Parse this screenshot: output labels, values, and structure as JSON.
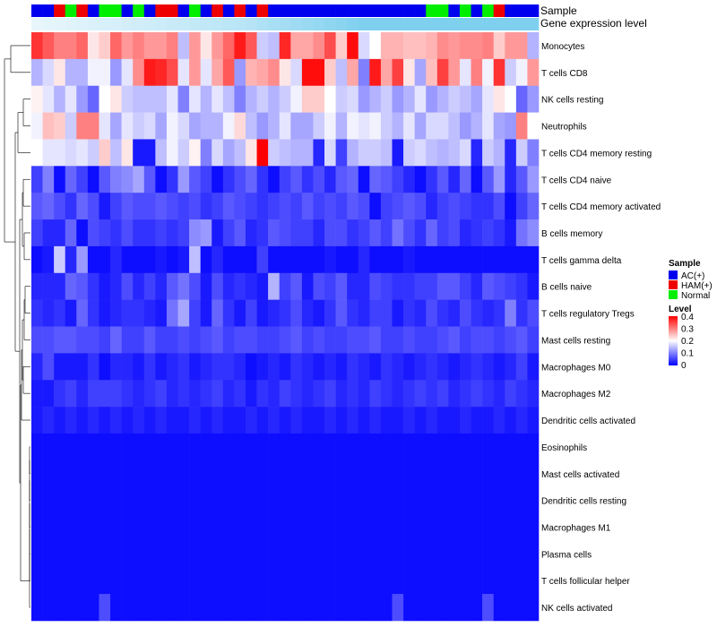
{
  "chart_data": {
    "type": "heatmap",
    "annotation_tracks": [
      "Sample",
      "Gene expression level"
    ],
    "sample_groups": [
      "AC(+)",
      "HAM(+)",
      "Normal"
    ],
    "sample_colors": {
      "AC(+)": "#0000ee",
      "HAM(+)": "#ee0000",
      "Normal": "#00ee00"
    },
    "samples": [
      "AC(+)",
      "AC(+)",
      "HAM(+)",
      "Normal",
      "HAM(+)",
      "AC(+)",
      "Normal",
      "Normal",
      "AC(+)",
      "Normal",
      "AC(+)",
      "HAM(+)",
      "HAM(+)",
      "AC(+)",
      "Normal",
      "AC(+)",
      "HAM(+)",
      "AC(+)",
      "HAM(+)",
      "AC(+)",
      "HAM(+)",
      "AC(+)",
      "AC(+)",
      "AC(+)",
      "AC(+)",
      "AC(+)",
      "AC(+)",
      "AC(+)",
      "AC(+)",
      "AC(+)",
      "AC(+)",
      "AC(+)",
      "AC(+)",
      "AC(+)",
      "AC(+)",
      "Normal",
      "Normal",
      "AC(+)",
      "Normal",
      "AC(+)",
      "Normal",
      "HAM(+)",
      "AC(+)",
      "AC(+)",
      "AC(+)"
    ],
    "gene_expression_gradient": [
      "#e8f6fc",
      "#7fd0ef"
    ],
    "rows": [
      "Monocytes",
      "T cells CD8",
      "NK cells resting",
      "Neutrophils",
      "T cells CD4 memory resting",
      "T cells CD4 naive",
      "T cells CD4 memory activated",
      "B cells memory",
      "T cells gamma delta",
      "B cells naive",
      "T cells regulatory  Tregs",
      "Mast cells resting",
      "Macrophages M0",
      "Macrophages M2",
      "Dendritic cells activated",
      "Eosinophils",
      "Mast cells activated",
      "Dendritic cells resting",
      "Macrophages M1",
      "Plasma cells",
      "T cells follicular helper",
      "NK cells activated"
    ],
    "color_scale": {
      "title": "Level",
      "range": [
        0,
        0.4
      ],
      "ticks": [
        "0.4",
        "0.3",
        "0.2",
        "0.1",
        "0"
      ],
      "colors": [
        "#0000ff",
        "#ffffff",
        "#ff0000"
      ]
    },
    "legend_position": "right",
    "values": [
      [
        0.36,
        0.33,
        0.3,
        0.3,
        0.32,
        0.22,
        0.24,
        0.32,
        0.28,
        0.3,
        0.28,
        0.28,
        0.3,
        0.15,
        0.28,
        0.22,
        0.28,
        0.32,
        0.38,
        0.33,
        0.16,
        0.15,
        0.37,
        0.27,
        0.27,
        0.29,
        0.34,
        0.24,
        0.39,
        0.17,
        0.2,
        0.26,
        0.26,
        0.25,
        0.25,
        0.26,
        0.29,
        0.28,
        0.29,
        0.29,
        0.3,
        0.24,
        0.28,
        0.28,
        0.14
      ],
      [
        0.14,
        0.17,
        0.22,
        0.14,
        0.14,
        0.19,
        0.19,
        0.12,
        0.18,
        0.29,
        0.38,
        0.37,
        0.34,
        0.18,
        0.28,
        0.18,
        0.27,
        0.33,
        0.12,
        0.26,
        0.27,
        0.29,
        0.22,
        0.17,
        0.39,
        0.39,
        0.24,
        0.15,
        0.27,
        0.1,
        0.38,
        0.27,
        0.35,
        0.22,
        0.13,
        0.25,
        0.35,
        0.28,
        0.18,
        0.3,
        0.19,
        0.36,
        0.16,
        0.19,
        0.28
      ],
      [
        0.21,
        0.18,
        0.14,
        0.18,
        0.12,
        0.08,
        0.2,
        0.22,
        0.16,
        0.15,
        0.15,
        0.15,
        0.18,
        0.1,
        0.18,
        0.14,
        0.18,
        0.15,
        0.1,
        0.14,
        0.16,
        0.14,
        0.16,
        0.19,
        0.24,
        0.24,
        0.2,
        0.16,
        0.17,
        0.12,
        0.14,
        0.16,
        0.12,
        0.14,
        0.18,
        0.12,
        0.14,
        0.16,
        0.15,
        0.13,
        0.18,
        0.22,
        0.2,
        0.08,
        0.12
      ],
      [
        0.19,
        0.25,
        0.24,
        0.16,
        0.3,
        0.3,
        0.18,
        0.13,
        0.18,
        0.16,
        0.17,
        0.13,
        0.19,
        0.17,
        0.13,
        0.14,
        0.14,
        0.19,
        0.23,
        0.15,
        0.12,
        0.14,
        0.18,
        0.13,
        0.13,
        0.16,
        0.19,
        0.14,
        0.19,
        0.18,
        0.19,
        0.16,
        0.14,
        0.18,
        0.13,
        0.17,
        0.17,
        0.15,
        0.12,
        0.14,
        0.18,
        0.13,
        0.12,
        0.3,
        0.2
      ],
      [
        0.2,
        0.18,
        0.18,
        0.17,
        0.18,
        0.16,
        0.24,
        0.15,
        0.22,
        0.02,
        0.02,
        0.15,
        0.19,
        0.16,
        0.21,
        0.1,
        0.17,
        0.13,
        0.15,
        0.22,
        0.4,
        0.16,
        0.15,
        0.14,
        0.14,
        0.03,
        0.17,
        0.05,
        0.14,
        0.16,
        0.16,
        0.15,
        0.02,
        0.16,
        0.17,
        0.15,
        0.14,
        0.15,
        0.17,
        0.03,
        0.16,
        0.14,
        0.03,
        0.16,
        0.1
      ],
      [
        0.05,
        0.1,
        0.01,
        0.08,
        0.05,
        0.01,
        0.07,
        0.1,
        0.11,
        0.13,
        0.07,
        0.01,
        0.04,
        0.12,
        0.07,
        0.05,
        0.01,
        0.04,
        0.06,
        0.08,
        0.04,
        0.01,
        0.05,
        0.07,
        0.04,
        0.06,
        0.03,
        0.07,
        0.08,
        0.01,
        0.08,
        0.07,
        0.05,
        0.03,
        0.01,
        0.04,
        0.07,
        0.03,
        0.08,
        0.01,
        0.07,
        0.12,
        0.03,
        0.07,
        0.12
      ],
      [
        0.07,
        0.08,
        0.06,
        0.04,
        0.08,
        0.06,
        0.02,
        0.05,
        0.07,
        0.06,
        0.06,
        0.07,
        0.06,
        0.05,
        0.06,
        0.04,
        0.05,
        0.07,
        0.06,
        0.05,
        0.04,
        0.05,
        0.06,
        0.05,
        0.07,
        0.05,
        0.06,
        0.05,
        0.07,
        0.06,
        0.01,
        0.05,
        0.06,
        0.07,
        0.06,
        0.03,
        0.05,
        0.06,
        0.05,
        0.04,
        0.04,
        0.06,
        0.01,
        0.05,
        0.08
      ],
      [
        0.05,
        0.03,
        0.03,
        0.08,
        0.01,
        0.06,
        0.05,
        0.04,
        0.06,
        0.04,
        0.04,
        0.05,
        0.04,
        0.05,
        0.11,
        0.12,
        0.02,
        0.05,
        0.07,
        0.03,
        0.04,
        0.07,
        0.06,
        0.05,
        0.05,
        0.03,
        0.06,
        0.06,
        0.04,
        0.05,
        0.07,
        0.05,
        0.09,
        0.06,
        0.04,
        0.08,
        0.05,
        0.06,
        0.03,
        0.04,
        0.05,
        0.04,
        0.02,
        0.09,
        0.11
      ],
      [
        0.01,
        0.02,
        0.16,
        0.03,
        0.12,
        0.01,
        0.01,
        0.03,
        0.01,
        0.01,
        0.01,
        0.02,
        0.01,
        0.02,
        0.15,
        0.01,
        0.03,
        0.01,
        0.01,
        0.01,
        0.05,
        0.01,
        0.01,
        0.01,
        0.01,
        0.01,
        0.02,
        0.01,
        0.01,
        0.03,
        0.01,
        0.01,
        0.01,
        0.02,
        0.01,
        0.01,
        0.01,
        0.01,
        0.01,
        0.01,
        0.01,
        0.01,
        0.01,
        0.01,
        0.01
      ],
      [
        0.03,
        0.03,
        0.03,
        0.08,
        0.07,
        0.04,
        0.02,
        0.03,
        0.06,
        0.03,
        0.05,
        0.03,
        0.07,
        0.09,
        0.06,
        0.02,
        0.06,
        0.03,
        0.04,
        0.03,
        0.02,
        0.14,
        0.05,
        0.07,
        0.02,
        0.06,
        0.05,
        0.07,
        0.03,
        0.03,
        0.06,
        0.05,
        0.04,
        0.04,
        0.05,
        0.05,
        0.07,
        0.07,
        0.05,
        0.03,
        0.07,
        0.06,
        0.05,
        0.04,
        0.02
      ],
      [
        0.04,
        0.03,
        0.04,
        0.02,
        0.08,
        0.04,
        0.02,
        0.03,
        0.04,
        0.04,
        0.03,
        0.02,
        0.09,
        0.13,
        0.05,
        0.02,
        0.08,
        0.04,
        0.02,
        0.05,
        0.02,
        0.03,
        0.04,
        0.06,
        0.03,
        0.02,
        0.04,
        0.07,
        0.04,
        0.03,
        0.05,
        0.05,
        0.02,
        0.04,
        0.03,
        0.06,
        0.04,
        0.03,
        0.06,
        0.04,
        0.03,
        0.04,
        0.1,
        0.04,
        0.06
      ],
      [
        0.06,
        0.06,
        0.07,
        0.07,
        0.06,
        0.06,
        0.05,
        0.08,
        0.05,
        0.05,
        0.07,
        0.05,
        0.05,
        0.06,
        0.05,
        0.06,
        0.07,
        0.05,
        0.06,
        0.06,
        0.05,
        0.05,
        0.06,
        0.07,
        0.05,
        0.06,
        0.05,
        0.05,
        0.06,
        0.06,
        0.07,
        0.05,
        0.05,
        0.06,
        0.05,
        0.05,
        0.06,
        0.07,
        0.05,
        0.06,
        0.06,
        0.05,
        0.06,
        0.07,
        0.05
      ],
      [
        0.03,
        0.06,
        0.02,
        0.02,
        0.02,
        0.04,
        0.01,
        0.03,
        0.03,
        0.02,
        0.04,
        0.02,
        0.03,
        0.04,
        0.02,
        0.03,
        0.04,
        0.04,
        0.03,
        0.01,
        0.02,
        0.03,
        0.02,
        0.04,
        0.03,
        0.02,
        0.03,
        0.02,
        0.04,
        0.03,
        0.02,
        0.04,
        0.03,
        0.02,
        0.03,
        0.04,
        0.03,
        0.02,
        0.03,
        0.04,
        0.03,
        0.02,
        0.03,
        0.05,
        0.02
      ],
      [
        0.02,
        0.02,
        0.04,
        0.05,
        0.03,
        0.05,
        0.05,
        0.05,
        0.04,
        0.03,
        0.04,
        0.05,
        0.03,
        0.04,
        0.03,
        0.04,
        0.05,
        0.03,
        0.04,
        0.02,
        0.04,
        0.03,
        0.05,
        0.04,
        0.03,
        0.04,
        0.05,
        0.03,
        0.04,
        0.03,
        0.05,
        0.04,
        0.03,
        0.04,
        0.05,
        0.04,
        0.05,
        0.03,
        0.04,
        0.05,
        0.04,
        0.03,
        0.05,
        0.04,
        0.03
      ],
      [
        0.02,
        0.03,
        0.02,
        0.03,
        0.02,
        0.03,
        0.02,
        0.03,
        0.02,
        0.03,
        0.02,
        0.03,
        0.02,
        0.02,
        0.03,
        0.02,
        0.03,
        0.02,
        0.02,
        0.03,
        0.02,
        0.03,
        0.02,
        0.03,
        0.02,
        0.02,
        0.03,
        0.02,
        0.03,
        0.02,
        0.03,
        0.02,
        0.02,
        0.03,
        0.02,
        0.03,
        0.02,
        0.02,
        0.03,
        0.02,
        0.02,
        0.03,
        0.02,
        0.03,
        0.02
      ],
      [
        0.01,
        0.01,
        0.01,
        0.01,
        0.01,
        0.01,
        0.01,
        0.01,
        0.01,
        0.01,
        0.01,
        0.01,
        0.01,
        0.01,
        0.01,
        0.01,
        0.01,
        0.01,
        0.01,
        0.01,
        0.01,
        0.01,
        0.01,
        0.01,
        0.01,
        0.01,
        0.01,
        0.01,
        0.01,
        0.01,
        0.01,
        0.01,
        0.01,
        0.01,
        0.01,
        0.01,
        0.01,
        0.01,
        0.01,
        0.01,
        0.01,
        0.01,
        0.01,
        0.01,
        0.01
      ],
      [
        0.01,
        0.01,
        0.01,
        0.01,
        0.01,
        0.01,
        0.01,
        0.01,
        0.01,
        0.01,
        0.01,
        0.01,
        0.01,
        0.01,
        0.01,
        0.01,
        0.01,
        0.01,
        0.01,
        0.01,
        0.01,
        0.01,
        0.01,
        0.01,
        0.01,
        0.01,
        0.01,
        0.01,
        0.01,
        0.01,
        0.01,
        0.01,
        0.01,
        0.01,
        0.01,
        0.01,
        0.01,
        0.01,
        0.01,
        0.01,
        0.01,
        0.01,
        0.01,
        0.01,
        0.01
      ],
      [
        0.01,
        0.01,
        0.01,
        0.01,
        0.01,
        0.01,
        0.01,
        0.01,
        0.01,
        0.01,
        0.01,
        0.01,
        0.01,
        0.01,
        0.01,
        0.01,
        0.01,
        0.01,
        0.01,
        0.01,
        0.01,
        0.01,
        0.01,
        0.01,
        0.01,
        0.01,
        0.01,
        0.01,
        0.01,
        0.01,
        0.01,
        0.01,
        0.01,
        0.01,
        0.01,
        0.01,
        0.01,
        0.01,
        0.01,
        0.01,
        0.01,
        0.01,
        0.01,
        0.01,
        0.01
      ],
      [
        0.01,
        0.01,
        0.01,
        0.01,
        0.01,
        0.01,
        0.01,
        0.01,
        0.01,
        0.01,
        0.01,
        0.01,
        0.01,
        0.01,
        0.01,
        0.01,
        0.01,
        0.01,
        0.01,
        0.01,
        0.01,
        0.01,
        0.01,
        0.01,
        0.01,
        0.01,
        0.01,
        0.01,
        0.01,
        0.01,
        0.01,
        0.01,
        0.01,
        0.01,
        0.01,
        0.01,
        0.01,
        0.01,
        0.01,
        0.01,
        0.01,
        0.01,
        0.01,
        0.01,
        0.01
      ],
      [
        0.01,
        0.01,
        0.01,
        0.01,
        0.01,
        0.01,
        0.01,
        0.01,
        0.01,
        0.01,
        0.01,
        0.01,
        0.01,
        0.01,
        0.01,
        0.01,
        0.01,
        0.01,
        0.01,
        0.01,
        0.01,
        0.01,
        0.01,
        0.01,
        0.01,
        0.01,
        0.01,
        0.01,
        0.01,
        0.01,
        0.01,
        0.01,
        0.01,
        0.01,
        0.01,
        0.01,
        0.01,
        0.01,
        0.01,
        0.01,
        0.01,
        0.01,
        0.01,
        0.01,
        0.01
      ],
      [
        0.01,
        0.01,
        0.01,
        0.01,
        0.01,
        0.01,
        0.01,
        0.01,
        0.01,
        0.01,
        0.01,
        0.01,
        0.01,
        0.01,
        0.01,
        0.01,
        0.01,
        0.01,
        0.01,
        0.01,
        0.01,
        0.01,
        0.01,
        0.01,
        0.01,
        0.01,
        0.01,
        0.01,
        0.01,
        0.01,
        0.01,
        0.01,
        0.01,
        0.01,
        0.01,
        0.01,
        0.01,
        0.01,
        0.01,
        0.01,
        0.01,
        0.01,
        0.01,
        0.01,
        0.01
      ],
      [
        0.01,
        0.01,
        0.01,
        0.01,
        0.01,
        0.01,
        0.06,
        0.01,
        0.01,
        0.01,
        0.01,
        0.01,
        0.01,
        0.01,
        0.01,
        0.01,
        0.01,
        0.01,
        0.01,
        0.01,
        0.01,
        0.01,
        0.01,
        0.01,
        0.01,
        0.01,
        0.01,
        0.01,
        0.01,
        0.01,
        0.01,
        0.01,
        0.06,
        0.01,
        0.01,
        0.01,
        0.01,
        0.01,
        0.01,
        0.01,
        0.06,
        0.01,
        0.01,
        0.01,
        0.01
      ]
    ]
  }
}
